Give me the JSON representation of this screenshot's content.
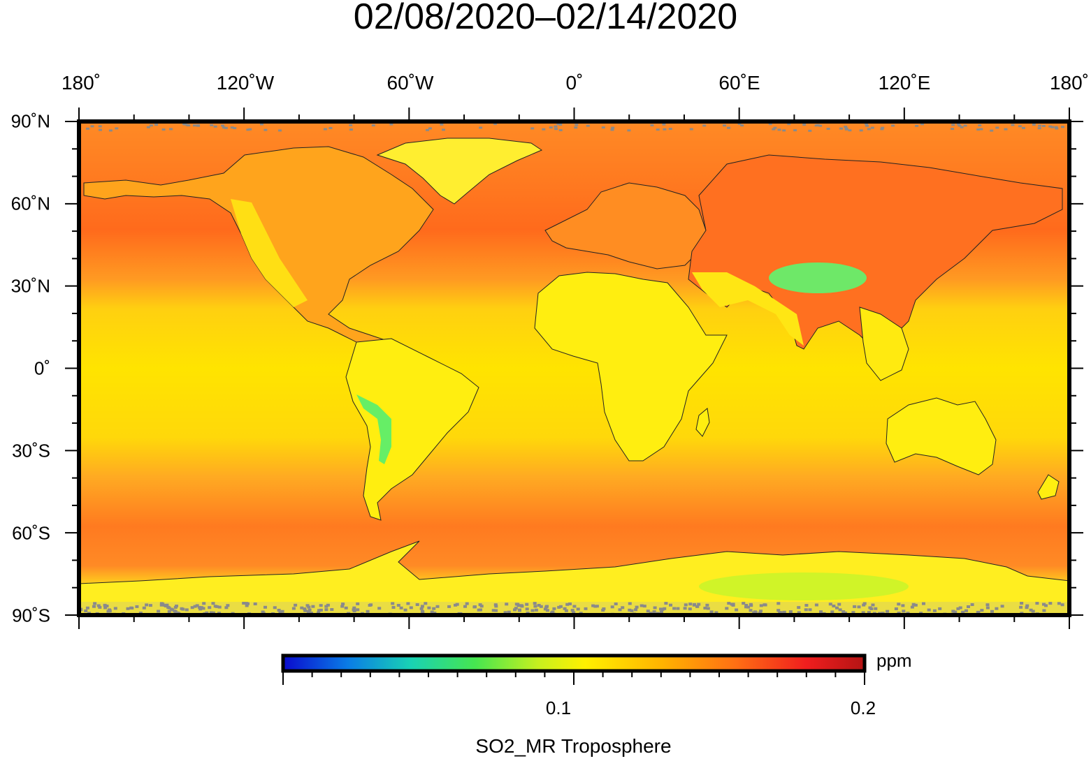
{
  "title": "02/08/2020–02/14/2020",
  "lon_labels": [
    "180˚",
    "120˚W",
    "60˚W",
    "0˚",
    "60˚E",
    "120˚E",
    "180˚"
  ],
  "lat_labels": [
    "90˚N",
    "60˚N",
    "30˚N",
    "0˚",
    "30˚S",
    "60˚S",
    "90˚S"
  ],
  "colorbar": {
    "unit": "ppm",
    "tick_labels": [
      "0.1",
      "0.2"
    ],
    "variable_label": "SO2_MR Troposphere",
    "range": [
      0.0,
      0.2
    ],
    "colors": [
      "#0a0acd",
      "#0a7be6",
      "#19d2b4",
      "#46e650",
      "#c8f01e",
      "#fff000",
      "#ffb400",
      "#ff6e14",
      "#f01e1e",
      "#b41414"
    ]
  },
  "map_colors": {
    "high_latitude": "#ff7a20",
    "mid_latitude": "#ffa020",
    "tropics": "#ffe400",
    "land_yellow": "#ffee10",
    "low_values": "#66ee66",
    "missing": "#8a8a8a"
  }
}
